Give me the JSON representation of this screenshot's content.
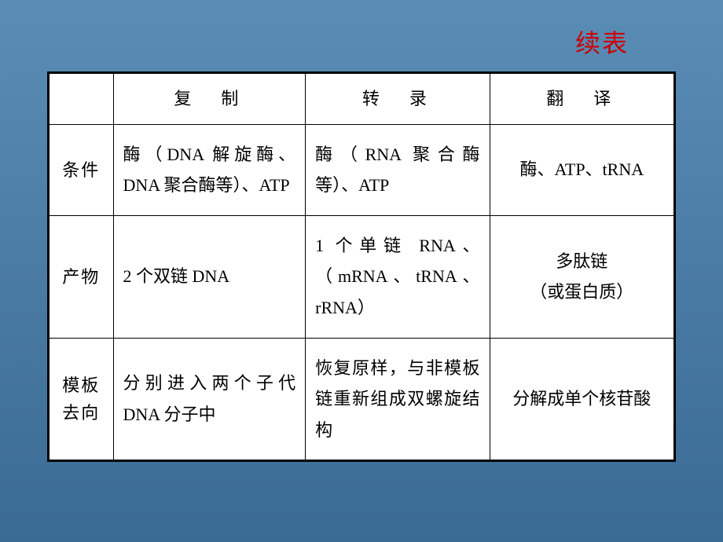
{
  "title": "续表",
  "styling": {
    "title_color": "#cc0000",
    "title_fontsize": 32,
    "body_fontsize": 22,
    "border_color": "#000000",
    "cell_bg": "#ffffff",
    "page_bg_gradient": [
      "#5a8db5",
      "#4a7ba5",
      "#3a6b95"
    ],
    "header_letter_spacing": 8
  },
  "table": {
    "columns": [
      "",
      "复　制",
      "转　录",
      "翻　译"
    ],
    "rows": [
      {
        "header": "条件",
        "cells": [
          "酶（DNA 解旋酶、DNA 聚合酶等）、ATP",
          "酶（RNA 聚合酶等）、ATP",
          "酶、ATP、tRNA"
        ]
      },
      {
        "header": "产物",
        "cells": [
          "2 个双链 DNA",
          "1 个单链 RNA、（mRNA、tRNA、rRNA）",
          "多肽链\n（或蛋白质）"
        ]
      },
      {
        "header": "模板去向",
        "cells": [
          "分别进入两个子代DNA 分子中",
          "恢复原样，与非模板链重新组成双螺旋结构",
          "分解成单个核苷酸"
        ]
      }
    ]
  }
}
